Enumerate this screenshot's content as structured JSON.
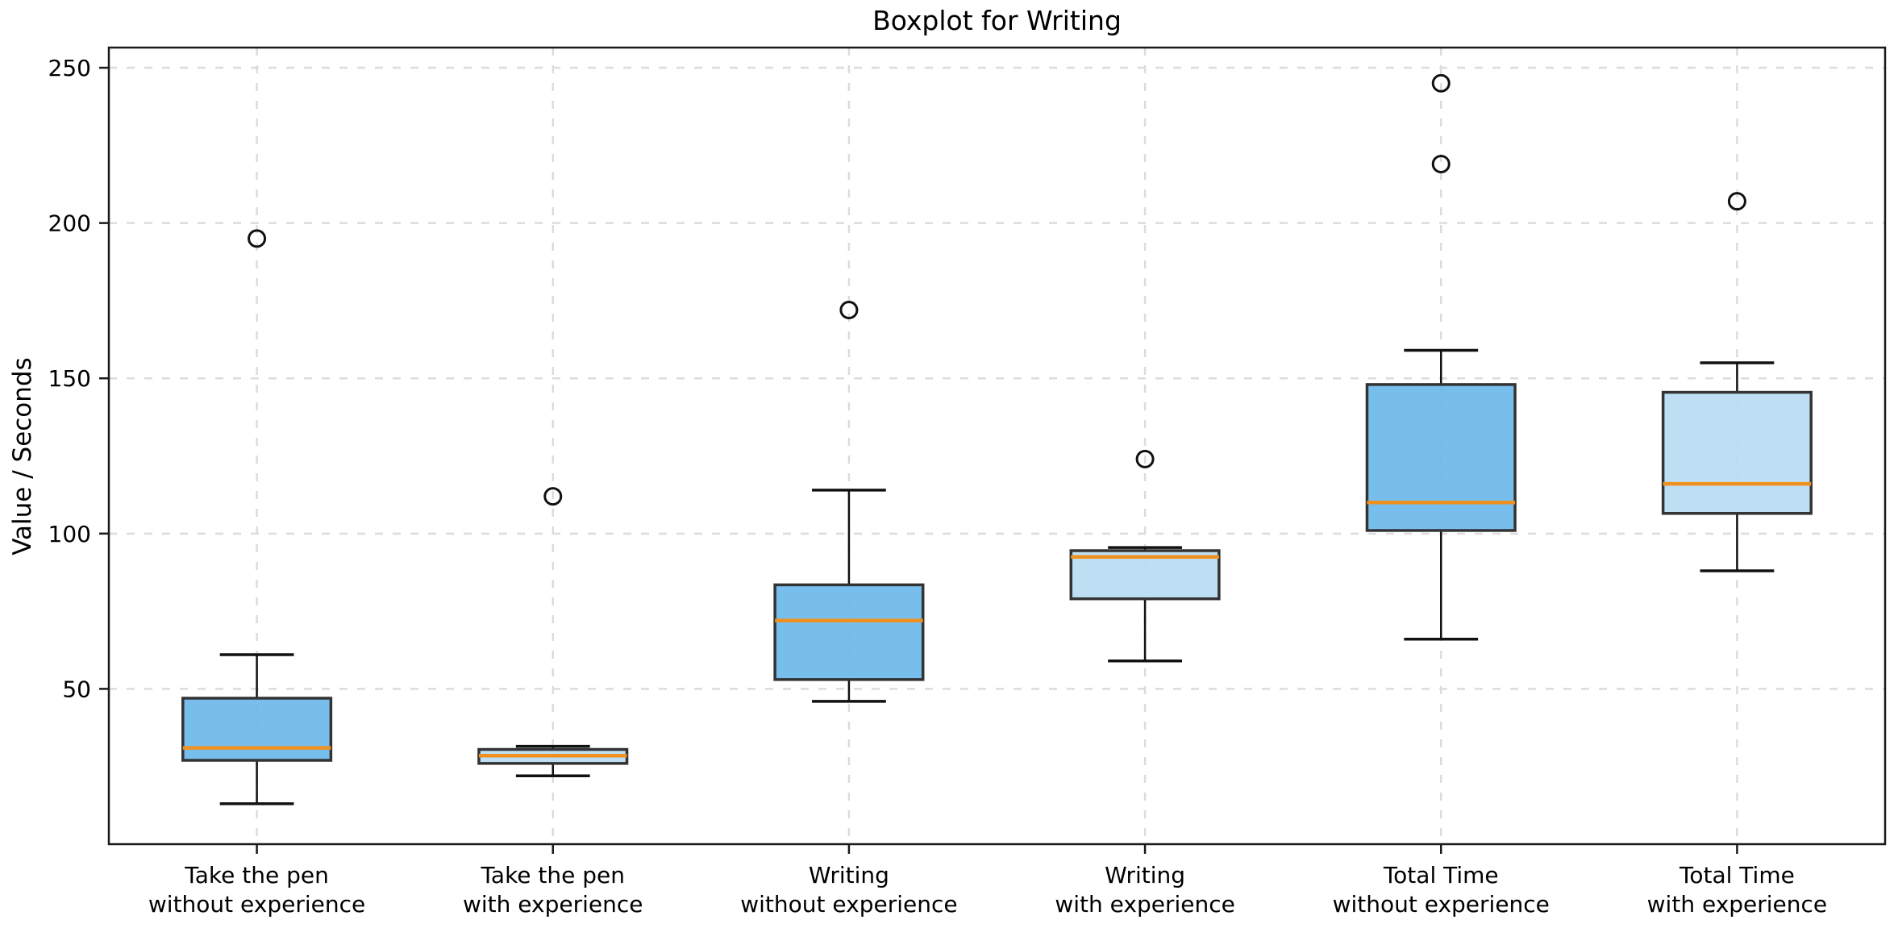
{
  "chart_data": {
    "type": "boxplot",
    "title": "Boxplot for Writing",
    "xlabel": "",
    "ylabel": "Value / Seconds",
    "ylim": [
      0,
      256.5
    ],
    "yticks": [
      50,
      100,
      150,
      200,
      250
    ],
    "grid": "dashed light-gray gridlines, both axes",
    "legend_position": "none",
    "categories": [
      [
        "Take the pen",
        "without experience"
      ],
      [
        "Take the pen",
        "with experience"
      ],
      [
        "Writing",
        "without experience"
      ],
      [
        "Writing",
        "with experience"
      ],
      [
        "Total Time",
        "without experience"
      ],
      [
        "Total Time",
        "with experience"
      ]
    ],
    "boxes": [
      {
        "label": "Take the pen without experience",
        "whisker_low": 13,
        "q1": 27,
        "median": 31,
        "q3": 47,
        "whisker_high": 61,
        "outliers": [
          195
        ],
        "fill": "#6db9ea"
      },
      {
        "label": "Take the pen with experience",
        "whisker_low": 22,
        "q1": 26,
        "median": 28.5,
        "q3": 30.5,
        "whisker_high": 31.5,
        "outliers": [
          112
        ],
        "fill": "#b9dcf2"
      },
      {
        "label": "Writing without experience",
        "whisker_low": 46,
        "q1": 53,
        "median": 72,
        "q3": 83.5,
        "whisker_high": 114,
        "outliers": [
          172
        ],
        "fill": "#6db9ea"
      },
      {
        "label": "Writing with experience",
        "whisker_low": 59,
        "q1": 79,
        "median": 92.5,
        "q3": 94.5,
        "whisker_high": 95.5,
        "outliers": [
          124
        ],
        "fill": "#b9dcf2"
      },
      {
        "label": "Total Time without experience",
        "whisker_low": 66,
        "q1": 101,
        "median": 110,
        "q3": 148,
        "whisker_high": 159,
        "outliers": [
          219,
          245
        ],
        "fill": "#6db9ea"
      },
      {
        "label": "Total Time with experience",
        "whisker_low": 88,
        "q1": 106.5,
        "median": 116,
        "q3": 145.5,
        "whisker_high": 155,
        "outliers": [
          207
        ],
        "fill": "#b9dcf2"
      }
    ],
    "colors": {
      "box_fill_without_experience": "#6db9ea",
      "box_fill_with_experience": "#b9dcf2",
      "median_line": "#f0901e",
      "box_edge": "#333333",
      "whisker": "#111111",
      "outlier_edge": "#111111",
      "gridline": "#dcdcdc",
      "spine": "#1a1a1a",
      "text": "#000000"
    }
  }
}
